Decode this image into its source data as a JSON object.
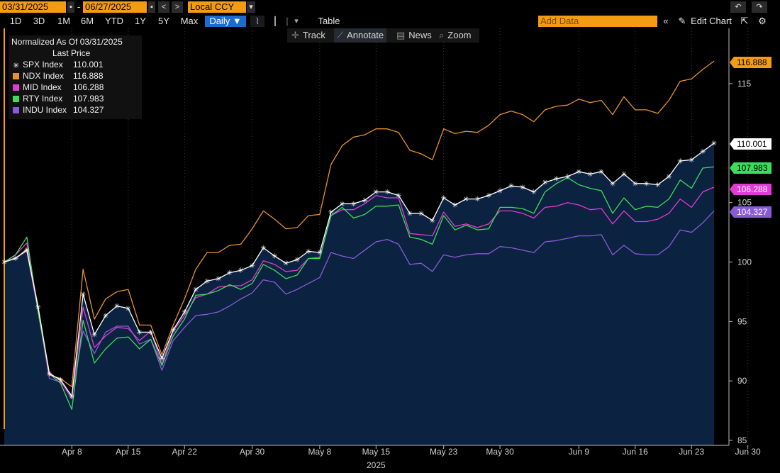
{
  "toolbar": {
    "start_date": "03/31/2025",
    "end_date": "06/27/2025",
    "currency": "Local CCY",
    "periods": [
      "1D",
      "3D",
      "1M",
      "6M",
      "YTD",
      "1Y",
      "5Y",
      "Max"
    ],
    "frequency": "Daily ▼",
    "table_label": "Table",
    "add_data_placeholder": "Add Data",
    "edit_chart_label": "Edit Chart"
  },
  "subbar": {
    "track": "Track",
    "annotate": "Annotate",
    "news": "News",
    "zoom": "Zoom"
  },
  "legend": {
    "title": "Normalized As Of 03/31/2025",
    "subtitle": "Last Price"
  },
  "colors": {
    "spx": "#ffffff",
    "ndx": "#e8922b",
    "mid": "#e23bd3",
    "rty": "#3ddc5a",
    "indu": "#8a5bd6",
    "area": "#0b2240",
    "orange_accent": "#f39c12"
  },
  "chart_data": {
    "type": "line",
    "title": "Normalized As Of 03/31/2025",
    "ylabel": "",
    "ylim": [
      85,
      118
    ],
    "yticks": [
      85,
      90,
      95,
      100,
      105,
      115
    ],
    "xtick_labels": [
      "Apr 8",
      "Apr 15",
      "Apr 22",
      "Apr 30",
      "May 8",
      "May 15",
      "May 23",
      "May 30",
      "Jun 9",
      "Jun 16",
      "Jun 23",
      "Jun 30"
    ],
    "xtick_index": [
      6,
      11,
      16,
      22,
      28,
      33,
      39,
      44,
      51,
      56,
      61,
      66
    ],
    "x_year_label": "2025",
    "series": [
      {
        "name": "SPX Index",
        "key": "spx",
        "last": "110.001",
        "last_label": "110.001",
        "values": [
          100,
          100.3,
          101.0,
          96.2,
          90.6,
          90.1,
          88.7,
          97.3,
          93.9,
          95.5,
          96.3,
          96.1,
          94.1,
          94.1,
          91.9,
          94.3,
          95.8,
          97.7,
          98.4,
          98.6,
          99.1,
          99.3,
          99.7,
          101.2,
          100.5,
          99.9,
          100.2,
          100.9,
          100.8,
          104.2,
          104.9,
          104.9,
          105.2,
          105.9,
          105.9,
          105.6,
          104.1,
          104.1,
          103.5,
          105.4,
          104.8,
          105.3,
          105.3,
          105.6,
          106.0,
          106.4,
          106.3,
          105.9,
          106.7,
          107.0,
          107.2,
          107.6,
          107.4,
          107.6,
          106.6,
          107.4,
          106.6,
          106.6,
          106.5,
          107.2,
          108.5,
          108.6,
          109.3,
          110.0
        ]
      },
      {
        "name": "NDX Index",
        "key": "ndx",
        "last": "116.888",
        "last_label": "116.888",
        "values": [
          100,
          100.3,
          101.1,
          96.3,
          90.5,
          90.2,
          89.5,
          99.4,
          95.2,
          96.9,
          97.5,
          97.7,
          94.7,
          94.7,
          92.2,
          94.7,
          96.9,
          99.4,
          100.8,
          100.8,
          101.4,
          101.5,
          102.8,
          104.3,
          103.6,
          102.8,
          102.9,
          103.9,
          104.0,
          108.2,
          109.8,
          110.5,
          110.7,
          111.2,
          111.2,
          110.9,
          109.4,
          109.1,
          108.6,
          111.2,
          110.8,
          111.0,
          110.9,
          111.5,
          112.4,
          112.7,
          112.4,
          111.8,
          112.8,
          113.1,
          113.2,
          113.7,
          113.4,
          113.6,
          112.4,
          113.9,
          112.8,
          112.8,
          112.5,
          113.6,
          115.2,
          115.4,
          116.2,
          116.9
        ]
      },
      {
        "name": "MID Index",
        "key": "mid",
        "last": "106.288",
        "last_label": "106.288",
        "values": [
          100,
          100.6,
          101.6,
          96.0,
          90.7,
          90.0,
          88.5,
          96.2,
          92.8,
          93.8,
          94.5,
          94.4,
          93.4,
          94.2,
          91.4,
          94.2,
          95.5,
          97.0,
          97.3,
          97.9,
          98.0,
          98.0,
          98.5,
          100.1,
          99.8,
          99.2,
          99.3,
          100.3,
          100.4,
          103.9,
          104.4,
          104.4,
          104.9,
          105.6,
          105.4,
          105.4,
          102.4,
          102.3,
          102.2,
          104.2,
          103.0,
          103.2,
          102.9,
          103.2,
          104.3,
          104.3,
          104.1,
          103.7,
          104.6,
          104.7,
          105.0,
          104.8,
          104.4,
          104.5,
          103.2,
          104.3,
          103.4,
          103.4,
          103.6,
          104.1,
          105.3,
          104.6,
          105.9,
          106.3
        ]
      },
      {
        "name": "RTY Index",
        "key": "rty",
        "last": "107.983",
        "last_label": "107.983",
        "values": [
          100,
          100.6,
          102.1,
          95.8,
          90.6,
          89.8,
          87.6,
          95.1,
          91.5,
          92.7,
          93.6,
          93.7,
          92.7,
          93.5,
          91.3,
          93.8,
          95.2,
          97.2,
          97.3,
          97.6,
          98.1,
          97.7,
          98.2,
          99.8,
          99.3,
          98.6,
          98.9,
          100.3,
          100.3,
          103.9,
          104.6,
          103.7,
          104.0,
          104.7,
          104.7,
          104.8,
          102.1,
          101.9,
          101.5,
          103.9,
          102.7,
          103.1,
          102.7,
          102.8,
          104.6,
          104.6,
          104.5,
          104.1,
          105.9,
          106.6,
          107.1,
          106.5,
          106.2,
          106.0,
          104.1,
          105.4,
          104.4,
          104.7,
          104.6,
          105.3,
          106.9,
          106.2,
          107.9,
          108.0
        ]
      },
      {
        "name": "INDU Index",
        "key": "indu",
        "last": "104.327",
        "last_label": "104.327",
        "values": [
          100,
          100.4,
          100.9,
          95.9,
          90.2,
          89.9,
          88.8,
          94.2,
          92.3,
          94.1,
          94.6,
          94.6,
          93.1,
          93.5,
          90.9,
          93.4,
          94.5,
          95.5,
          95.6,
          95.8,
          96.3,
          96.9,
          97.4,
          98.5,
          98.3,
          97.3,
          97.7,
          98.2,
          98.7,
          100.8,
          100.5,
          100.3,
          101.0,
          101.7,
          101.9,
          101.5,
          99.8,
          99.9,
          99.2,
          100.6,
          100.4,
          100.6,
          100.7,
          100.7,
          101.3,
          101.2,
          101.0,
          100.8,
          101.7,
          101.8,
          102.0,
          102.2,
          102.2,
          102.3,
          100.6,
          101.4,
          100.7,
          100.6,
          100.6,
          101.3,
          102.7,
          102.5,
          103.3,
          104.3
        ]
      }
    ]
  }
}
